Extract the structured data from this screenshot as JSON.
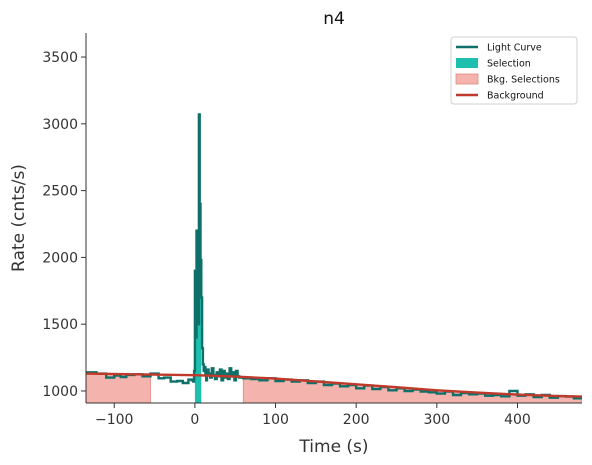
{
  "chart_data": {
    "type": "line",
    "title": "n4",
    "xlabel": "Time (s)",
    "ylabel": "Rate (cnts/s)",
    "xlim": [
      -135,
      480
    ],
    "ylim": [
      910,
      3680
    ],
    "xticks": [
      -100,
      0,
      100,
      200,
      300,
      400
    ],
    "yticks": [
      1000,
      1500,
      2000,
      2500,
      3000,
      3500
    ],
    "xtick_labels": [
      "−100",
      "0",
      "100",
      "200",
      "300",
      "400"
    ],
    "ytick_labels": [
      "1000",
      "1500",
      "2000",
      "2500",
      "3000",
      "3500"
    ],
    "grid": false,
    "legend_position": "top-right",
    "legend": [
      {
        "label": "Light Curve",
        "kind": "line",
        "color": "#0e7068"
      },
      {
        "label": "Selection",
        "kind": "patch",
        "color": "#1fbfb0"
      },
      {
        "label": "Bkg. Selections",
        "kind": "patch",
        "color": "#f4b4ad"
      },
      {
        "label": "Background",
        "kind": "line",
        "color": "#c0392b"
      }
    ],
    "colors": {
      "light_curve": "#0e7068",
      "selection": "#1fbfb0",
      "bkg_selection": "#f4b4ad",
      "bkg_selection_edge": "#e08a80",
      "background": "#c0392b"
    },
    "background_model": {
      "x": [
        -135,
        0,
        50,
        100,
        150,
        200,
        250,
        300,
        350,
        400,
        450,
        480
      ],
      "y": [
        1130,
        1118,
        1108,
        1093,
        1072,
        1050,
        1028,
        1005,
        988,
        973,
        962,
        958
      ]
    },
    "bkg_selections": [
      [
        -135,
        -55
      ],
      [
        60,
        480
      ]
    ],
    "selection": [
      0,
      8
    ],
    "light_curve": {
      "x": [
        -135,
        -122,
        -110,
        -100,
        -92,
        -85,
        -75,
        -65,
        -55,
        -45,
        -38,
        -30,
        -22,
        -15,
        -8,
        -4,
        -2,
        -1,
        0,
        1,
        2,
        3,
        4,
        5,
        6,
        7,
        8,
        9,
        10,
        11,
        12,
        13,
        14,
        15,
        17,
        19,
        21,
        23,
        25,
        27,
        29,
        31,
        33,
        35,
        37,
        39,
        41,
        43,
        45,
        47,
        49,
        51,
        53,
        55,
        60,
        70,
        80,
        90,
        100,
        110,
        120,
        130,
        140,
        150,
        160,
        170,
        180,
        190,
        200,
        210,
        220,
        230,
        240,
        250,
        260,
        270,
        280,
        290,
        300,
        310,
        320,
        330,
        340,
        350,
        360,
        370,
        380,
        390,
        400,
        410,
        420,
        430,
        440,
        450,
        460,
        470,
        480
      ],
      "y": [
        1140,
        1130,
        1100,
        1115,
        1105,
        1120,
        1125,
        1110,
        1130,
        1095,
        1100,
        1070,
        1075,
        1060,
        1085,
        1080,
        1070,
        1150,
        1900,
        1400,
        2200,
        1800,
        1500,
        3070,
        2400,
        1980,
        1700,
        1320,
        1200,
        1150,
        1180,
        1120,
        1080,
        1160,
        1130,
        1100,
        1170,
        1120,
        1090,
        1140,
        1110,
        1160,
        1080,
        1150,
        1100,
        1130,
        1090,
        1170,
        1120,
        1140,
        1080,
        1150,
        1110,
        1100,
        1095,
        1090,
        1080,
        1095,
        1075,
        1085,
        1070,
        1080,
        1060,
        1070,
        1045,
        1055,
        1035,
        1045,
        1020,
        1040,
        1015,
        1030,
        1005,
        1020,
        1000,
        1010,
        995,
        990,
        980,
        995,
        970,
        985,
        975,
        980,
        965,
        970,
        960,
        1000,
        965,
        975,
        955,
        970,
        950,
        962,
        958,
        945,
        955
      ]
    }
  }
}
